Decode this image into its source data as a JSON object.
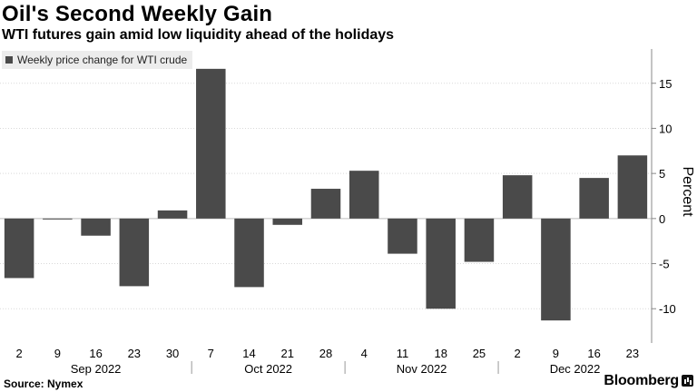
{
  "title": "Oil's Second Weekly Gain",
  "subtitle": "WTI futures gain amid low liquidity ahead of the holidays",
  "source": "Source: Nymex",
  "brand": "Bloomberg",
  "colors": {
    "bar": "#4a4a4a",
    "grid": "#d9d9d9",
    "axis": "#888888"
  },
  "chart_data": {
    "type": "bar",
    "categories": [
      "2",
      "9",
      "16",
      "23",
      "30",
      "7",
      "14",
      "21",
      "28",
      "4",
      "11",
      "18",
      "25",
      "2",
      "9",
      "16",
      "23"
    ],
    "values": [
      -6.6,
      -0.1,
      -1.9,
      -7.5,
      0.9,
      16.6,
      -7.6,
      -0.7,
      3.3,
      5.3,
      -3.9,
      -10.0,
      -4.8,
      4.8,
      -11.3,
      4.5,
      7.0
    ],
    "month_labels": [
      "Sep 2022",
      "Oct 2022",
      "Nov 2022",
      "Dec 2022"
    ],
    "legend": [
      "Weekly price change for WTI crude"
    ],
    "ylabel": "Percent",
    "ylim": [
      -13.8,
      19
    ],
    "yticks": [
      15,
      10,
      5,
      0,
      -5,
      -10
    ],
    "ytick_labels": [
      "15",
      "10",
      "5",
      "0",
      "-5",
      "-10"
    ],
    "grid": true,
    "legend_position": "top-left"
  }
}
